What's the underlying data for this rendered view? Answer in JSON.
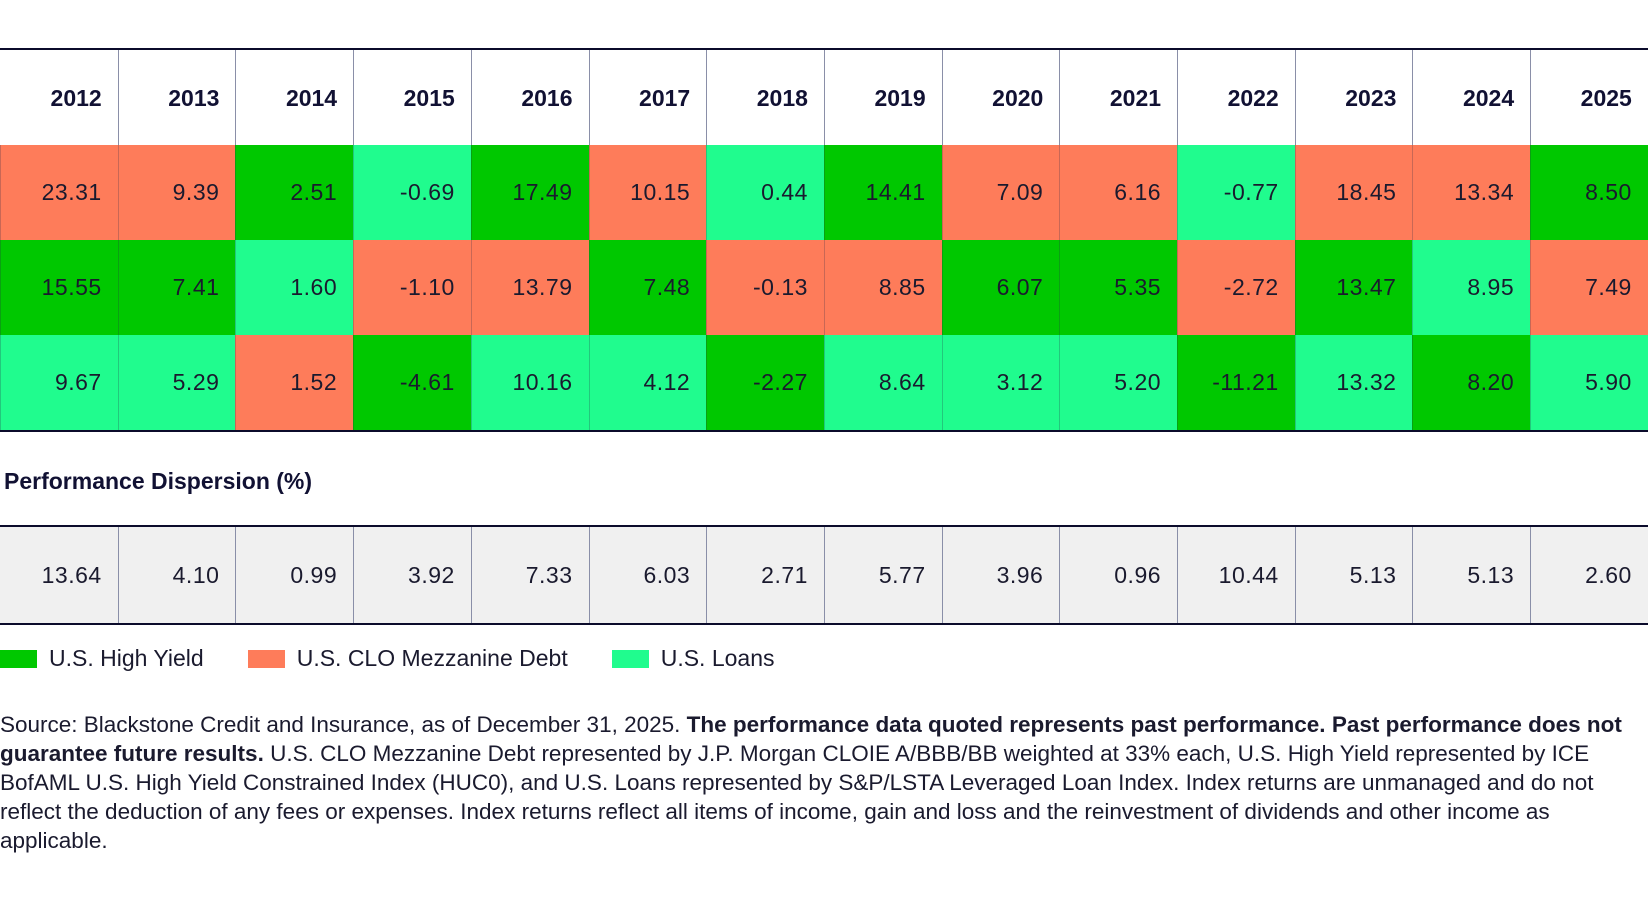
{
  "chart_data": {
    "type": "table",
    "colors": {
      "U.S. High Yield": "#00c800",
      "U.S. CLO Mezzanine Debt": "#fe7c5a",
      "U.S. Loans": "#20fc8e",
      "dispersion_bg": "#f0f0f0"
    },
    "years": [
      "2012",
      "2013",
      "2014",
      "2015",
      "2016",
      "2017",
      "2018",
      "2019",
      "2020",
      "2021",
      "2022",
      "2023",
      "2024",
      "2025"
    ],
    "rows": [
      {
        "values": [
          "23.31",
          "9.39",
          "2.51",
          "-0.69",
          "17.49",
          "10.15",
          "0.44",
          "14.41",
          "7.09",
          "6.16",
          "-0.77",
          "18.45",
          "13.34",
          "8.50"
        ],
        "series": [
          "U.S. CLO Mezzanine Debt",
          "U.S. CLO Mezzanine Debt",
          "U.S. High Yield",
          "U.S. Loans",
          "U.S. High Yield",
          "U.S. CLO Mezzanine Debt",
          "U.S. Loans",
          "U.S. High Yield",
          "U.S. CLO Mezzanine Debt",
          "U.S. CLO Mezzanine Debt",
          "U.S. Loans",
          "U.S. CLO Mezzanine Debt",
          "U.S. CLO Mezzanine Debt",
          "U.S. High Yield"
        ]
      },
      {
        "values": [
          "15.55",
          "7.41",
          "1.60",
          "-1.10",
          "13.79",
          "7.48",
          "-0.13",
          "8.85",
          "6.07",
          "5.35",
          "-2.72",
          "13.47",
          "8.95",
          "7.49"
        ],
        "series": [
          "U.S. High Yield",
          "U.S. High Yield",
          "U.S. Loans",
          "U.S. CLO Mezzanine Debt",
          "U.S. CLO Mezzanine Debt",
          "U.S. High Yield",
          "U.S. CLO Mezzanine Debt",
          "U.S. CLO Mezzanine Debt",
          "U.S. High Yield",
          "U.S. High Yield",
          "U.S. CLO Mezzanine Debt",
          "U.S. High Yield",
          "U.S. Loans",
          "U.S. CLO Mezzanine Debt"
        ]
      },
      {
        "values": [
          "9.67",
          "5.29",
          "1.52",
          "-4.61",
          "10.16",
          "4.12",
          "-2.27",
          "8.64",
          "3.12",
          "5.20",
          "-11.21",
          "13.32",
          "8.20",
          "5.90"
        ],
        "series": [
          "U.S. Loans",
          "U.S. Loans",
          "U.S. CLO Mezzanine Debt",
          "U.S. High Yield",
          "U.S. Loans",
          "U.S. Loans",
          "U.S. High Yield",
          "U.S. Loans",
          "U.S. Loans",
          "U.S. Loans",
          "U.S. High Yield",
          "U.S. Loans",
          "U.S. High Yield",
          "U.S. Loans"
        ]
      }
    ],
    "dispersion_title": "Performance Dispersion (%)",
    "dispersion": [
      "13.64",
      "4.10",
      "0.99",
      "3.92",
      "7.33",
      "6.03",
      "2.71",
      "5.77",
      "3.96",
      "0.96",
      "10.44",
      "5.13",
      "5.13",
      "2.60"
    ],
    "legend": [
      {
        "label": "U.S. High Yield",
        "color": "#00c800"
      },
      {
        "label": "U.S. CLO Mezzanine Debt",
        "color": "#fe7c5a"
      },
      {
        "label": "U.S. Loans",
        "color": "#20fc8e"
      }
    ]
  },
  "source": {
    "lead": "Source: Blackstone Credit and Insurance, as of December 31, 2025. ",
    "bold": "The performance data quoted represents past performance. Past performance does not guarantee future results.",
    "rest": " U.S. CLO Mezzanine Debt represented by J.P. Morgan CLOIE A/BBB/BB weighted at 33% each, U.S. High Yield represented by ICE BofAML U.S. High Yield Constrained Index (HUC0), and U.S. Loans represented by S&P/LSTA Leveraged Loan Index. Index returns are unmanaged and do not reflect the deduction of any fees or expenses. Index returns reflect all items of income, gain and loss and the reinvestment of dividends and other income as applicable."
  }
}
